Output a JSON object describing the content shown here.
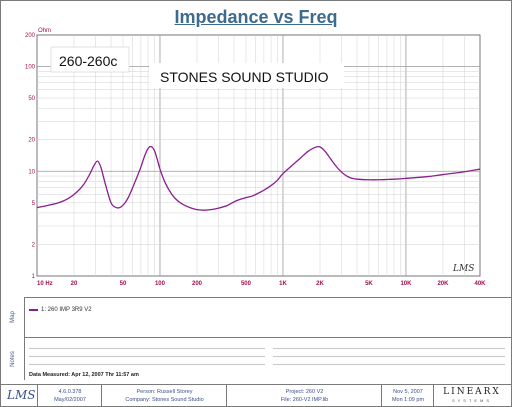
{
  "chart_data": {
    "type": "line",
    "title": "Impedance vs Freq",
    "xlabel": "",
    "ylabel": "",
    "x_scale": "log",
    "y_scale": "log",
    "xlim": [
      10,
      40000
    ],
    "ylim": [
      1,
      200
    ],
    "y_unit": "Ohm",
    "x_ticks": [
      {
        "value": 10,
        "label": "10 Hz"
      },
      {
        "value": 20,
        "label": "20"
      },
      {
        "value": 50,
        "label": "50"
      },
      {
        "value": 100,
        "label": "100"
      },
      {
        "value": 200,
        "label": "200"
      },
      {
        "value": 500,
        "label": "500"
      },
      {
        "value": 1000,
        "label": "1K"
      },
      {
        "value": 2000,
        "label": "2K"
      },
      {
        "value": 5000,
        "label": "5K"
      },
      {
        "value": 10000,
        "label": "10K"
      },
      {
        "value": 20000,
        "label": "20K"
      },
      {
        "value": 40000,
        "label": "40K"
      }
    ],
    "y_ticks": [
      {
        "value": 1,
        "label": "1"
      },
      {
        "value": 2,
        "label": "2"
      },
      {
        "value": 5,
        "label": "5"
      },
      {
        "value": 10,
        "label": "10"
      },
      {
        "value": 20,
        "label": "20"
      },
      {
        "value": 50,
        "label": "50"
      },
      {
        "value": 100,
        "label": "100"
      },
      {
        "value": 200,
        "label": "200"
      }
    ],
    "grid": true,
    "annotations": [
      "260-260c",
      "STONES SOUND STUDIO"
    ],
    "series": [
      {
        "name": "1: 260 IMP  3R9  V2",
        "color": "#8b1e8f",
        "x": [
          10,
          12,
          15,
          18,
          21,
          24,
          27,
          29,
          31,
          33,
          36,
          40,
          44,
          48,
          52,
          56,
          60,
          65,
          70,
          75,
          80,
          85,
          90,
          95,
          100,
          110,
          125,
          140,
          160,
          180,
          200,
          230,
          260,
          300,
          350,
          400,
          450,
          500,
          550,
          600,
          700,
          800,
          900,
          1000,
          1200,
          1400,
          1600,
          1800,
          1950,
          2050,
          2200,
          2400,
          2700,
          3000,
          3300,
          3600,
          4000,
          5000,
          6000,
          7000,
          8000,
          10000,
          15000,
          20000,
          30000,
          40000
        ],
        "y": [
          4.5,
          4.7,
          5.0,
          5.5,
          6.3,
          7.5,
          9.5,
          11.3,
          12.5,
          11.0,
          7.5,
          5.0,
          4.5,
          4.55,
          5.0,
          5.8,
          7.0,
          8.8,
          11.0,
          14.0,
          16.5,
          17.2,
          15.8,
          13.0,
          10.5,
          7.8,
          6.0,
          5.2,
          4.7,
          4.45,
          4.3,
          4.25,
          4.3,
          4.45,
          4.7,
          5.1,
          5.4,
          5.6,
          5.75,
          6.0,
          6.6,
          7.3,
          8.2,
          9.5,
          11.5,
          13.5,
          15.5,
          16.8,
          17.2,
          16.8,
          15.5,
          13.5,
          11.2,
          9.8,
          9.0,
          8.6,
          8.4,
          8.3,
          8.3,
          8.35,
          8.4,
          8.55,
          8.9,
          9.3,
          9.9,
          10.5
        ]
      }
    ]
  },
  "header": {
    "title": "Impedance vs Freq",
    "y_unit": "Ohm"
  },
  "plot": {
    "watermark": "LMS"
  },
  "lower": {
    "map_tab": "Map",
    "notes_tab": "Notes",
    "legend_entry": "1: 260 IMP  3R9  V2",
    "data_measured": "Data Measured: Apr 12, 2007  Thr 11:57 am"
  },
  "footer": {
    "logo": "LMS",
    "version": "4.6.0.378",
    "version_date": "May/02/2007",
    "person": "Person: Russell Storey",
    "company": "Company: Stones Sound Studio",
    "project": "Project: 260 V2",
    "file": "File: 260-V2 IMP.lib",
    "date": "Nov 5, 2007",
    "time": "Mon  1:09 pm",
    "brand": "LINEARX",
    "brand_sub": "SYSTEMS"
  }
}
